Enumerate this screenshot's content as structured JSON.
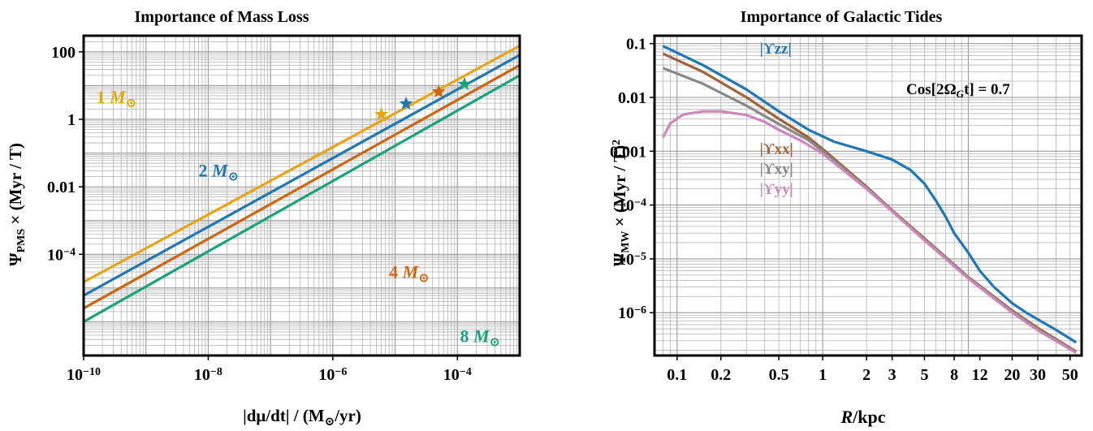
{
  "chart_data": [
    {
      "type": "line",
      "title": "Importance of Mass Loss",
      "xlabel": {
        "main": "|dμ/dt| / (M",
        "sub": "⊙",
        "tail": "/yr)"
      },
      "ylabel": {
        "psi": "Ψ",
        "sub": "PMS",
        "tail": " × (Myr / T)"
      },
      "xscale": "log",
      "yscale": "log",
      "xlim": [
        1e-10,
        0.001
      ],
      "ylim": [
        1e-07,
        300
      ],
      "grid": true,
      "x_ticks": [
        {
          "v": 1e-10,
          "base": "10",
          "exp": "−10"
        },
        {
          "v": 1e-08,
          "base": "10",
          "exp": "−8"
        },
        {
          "v": 1e-06,
          "base": "10",
          "exp": "−6"
        },
        {
          "v": 0.0001,
          "base": "10",
          "exp": "−4"
        }
      ],
      "y_ticks": [
        {
          "v": 100,
          "base": "100",
          "exp": ""
        },
        {
          "v": 1,
          "base": "1",
          "exp": ""
        },
        {
          "v": 0.01,
          "base": "0.01",
          "exp": ""
        },
        {
          "v": 0.0001,
          "base": "10",
          "exp": "−4"
        }
      ],
      "series": [
        {
          "name": "1 M",
          "color": "#E8A317",
          "x": [
            1e-10,
            0.001
          ],
          "y": [
            1.5e-05,
            150
          ],
          "star": [
            6e-06,
            1.4
          ],
          "label_pos": [
            1.6e-10,
            3
          ],
          "label_color": "#E8A317"
        },
        {
          "name": "2 M",
          "color": "#1F77B4",
          "x": [
            1e-10,
            0.001
          ],
          "y": [
            6e-06,
            80
          ],
          "star": [
            1.5e-05,
            2.9
          ],
          "label_pos": [
            7e-09,
            0.02
          ],
          "label_color": "#1F77B4"
        },
        {
          "name": "4 M",
          "color": "#CC6611",
          "x": [
            1e-10,
            0.001
          ],
          "y": [
            2.5e-06,
            40
          ],
          "star": [
            5e-05,
            6.5
          ],
          "label_pos": [
            8e-06,
            2e-05
          ],
          "label_color": "#CC6611"
        },
        {
          "name": "8 M",
          "color": "#1AA37A",
          "x": [
            1e-10,
            0.001
          ],
          "y": [
            1e-06,
            20
          ],
          "star": [
            0.00013,
            11
          ],
          "label_pos": [
            0.00011,
            2.5e-07
          ],
          "label_color": "#1AA37A"
        }
      ],
      "mass_sun": "⊙"
    },
    {
      "type": "line",
      "title": "Importance of Galactic Tides",
      "xlabel": {
        "main": "R",
        "tail": "/kpc"
      },
      "ylabel": {
        "psi": "Ψ",
        "sub": "MW",
        "tail": " × (Myr / T)",
        "sup": "2"
      },
      "xscale": "log",
      "yscale": "log",
      "xlim": [
        0.07,
        60
      ],
      "ylim": [
        1.6e-07,
        0.14
      ],
      "grid": true,
      "annotation": {
        "prefix": "Cos[2Ω",
        "sub": "G",
        "suffix": "t] = 0.7"
      },
      "x_ticks": [
        {
          "v": 0.1,
          "label": "0.1"
        },
        {
          "v": 0.2,
          "label": "0.2"
        },
        {
          "v": 0.5,
          "label": "0.5"
        },
        {
          "v": 1,
          "label": "1"
        },
        {
          "v": 2,
          "label": "2"
        },
        {
          "v": 3,
          "label": "3"
        },
        {
          "v": 5,
          "label": "5"
        },
        {
          "v": 8,
          "label": "8"
        },
        {
          "v": 12,
          "label": "12"
        },
        {
          "v": 20,
          "label": "20"
        },
        {
          "v": 30,
          "label": "30"
        },
        {
          "v": 50,
          "label": "50"
        }
      ],
      "y_ticks": [
        {
          "v": 0.1,
          "base": "0.1",
          "exp": ""
        },
        {
          "v": 0.01,
          "base": "0.01",
          "exp": ""
        },
        {
          "v": 0.001,
          "base": "0.001",
          "exp": ""
        },
        {
          "v": 0.0001,
          "base": "10",
          "exp": "−4"
        },
        {
          "v": 1e-05,
          "base": "10",
          "exp": "−5"
        },
        {
          "v": 1e-06,
          "base": "10",
          "exp": "−6"
        }
      ],
      "series": [
        {
          "name": "|ϒzz|",
          "color": "#1F77B4",
          "label_pos": [
            0.37,
            0.065
          ],
          "x": [
            0.08,
            0.15,
            0.3,
            0.5,
            0.8,
            1.2,
            2,
            3,
            4,
            5,
            6,
            7,
            8,
            10,
            12,
            15,
            20,
            25,
            30,
            40,
            55
          ],
          "y": [
            0.09,
            0.04,
            0.014,
            0.0055,
            0.0025,
            0.0015,
            0.001,
            0.0007,
            0.00045,
            0.00025,
            0.00012,
            6e-05,
            3e-05,
            1.3e-05,
            6e-06,
            3e-06,
            1.5e-06,
            1e-06,
            7.5e-07,
            4.8e-07,
            2.8e-07
          ]
        },
        {
          "name": "|ϒxx|",
          "color": "#A0643C",
          "label_pos": [
            0.37,
            0.0009
          ],
          "x": [
            0.08,
            0.15,
            0.3,
            0.5,
            0.8,
            1,
            2,
            3,
            5,
            10,
            20,
            30,
            55
          ],
          "y": [
            0.065,
            0.03,
            0.01,
            0.004,
            0.0018,
            0.0011,
            0.00022,
            8e-05,
            2.4e-05,
            4.6e-06,
            1.1e-06,
            5.2e-07,
            1.9e-07
          ]
        },
        {
          "name": "|ϒxy|",
          "color": "#888888",
          "label_pos": [
            0.37,
            0.00038
          ],
          "x": [
            0.08,
            0.15,
            0.3,
            0.5,
            0.8,
            1,
            2,
            3,
            5,
            10,
            20,
            30,
            55
          ],
          "y": [
            0.035,
            0.018,
            0.007,
            0.0032,
            0.0016,
            0.001,
            0.00021,
            7.8e-05,
            2.3e-05,
            4.5e-06,
            1.05e-06,
            4.9e-07,
            1.85e-07
          ]
        },
        {
          "name": "|ϒyy|",
          "color": "#CC88BB",
          "label_pos": [
            0.37,
            0.00016
          ],
          "x": [
            0.08,
            0.09,
            0.11,
            0.15,
            0.2,
            0.3,
            0.4,
            0.5,
            0.7,
            1,
            2,
            3,
            5,
            10,
            20,
            30,
            55
          ],
          "y": [
            0.0018,
            0.0033,
            0.0048,
            0.0055,
            0.0055,
            0.0047,
            0.0035,
            0.0025,
            0.0016,
            0.0009,
            0.0002,
            7.6e-05,
            2.2e-05,
            4.3e-06,
            1e-06,
            4.7e-07,
            1.8e-07
          ]
        }
      ]
    }
  ]
}
